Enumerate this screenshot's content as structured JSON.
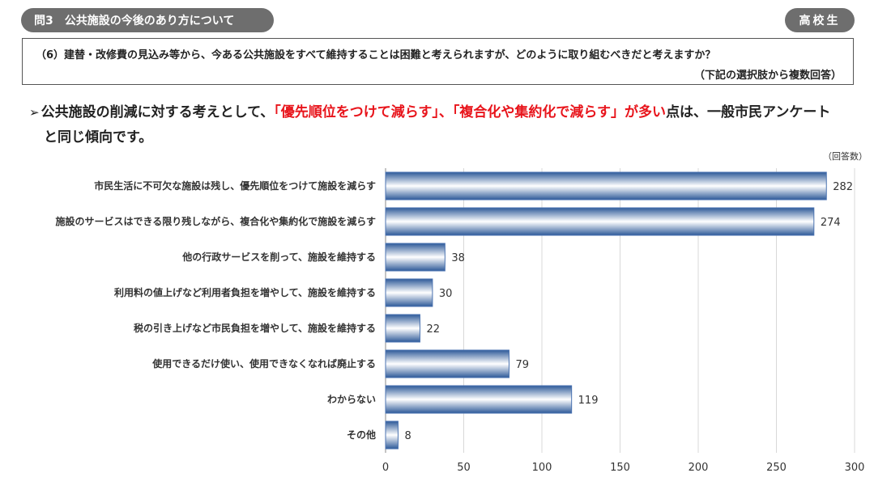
{
  "header": {
    "question_no": "問3",
    "title": "公共施設の今後のあり方について",
    "badge": "高校生"
  },
  "question": {
    "text": "（6）建替・改修費の見込み等から、今ある公共施設をすべて維持することは困難と考えられますが、どのように取り組むべきだと考えますか？",
    "note": "（下記の選択肢から複数回答）"
  },
  "summary": {
    "arrow": "➢",
    "part1": "公共施設の削減に対する考えとして、",
    "highlight1": "「優先順位をつけて減らす」",
    "sep": "、",
    "highlight2": "「複合化や集約化で減らす」が多い",
    "part2": "点は、一般市民アンケート",
    "line2": "と同じ傾向です。"
  },
  "chart_unit": "（回答数）",
  "colors": {
    "bar_dark": "#2e5a99",
    "bar_light": "#ffffff",
    "bar_border": "#4a72b0",
    "grid": "#d8d8d8"
  },
  "chart_data": {
    "type": "bar",
    "orientation": "horizontal",
    "categories": [
      "市民生活に不可欠な施設は残し、優先順位をつけて施設を減らす",
      "施設のサービスはできる限り残しながら、複合化や集約化で施設を減らす",
      "他の行政サービスを削って、施設を維持する",
      "利用料の値上げなど利用者負担を増やして、施設を維持する",
      "税の引き上げなど市民負担を増やして、施設を維持する",
      "使用できるだけ使い、使用できなくなれば廃止する",
      "わからない",
      "その他"
    ],
    "values": [
      282,
      274,
      38,
      30,
      22,
      79,
      119,
      8
    ],
    "xlim": [
      0,
      300
    ],
    "xticks": [
      0,
      50,
      100,
      150,
      200,
      250,
      300
    ],
    "grid": true
  }
}
